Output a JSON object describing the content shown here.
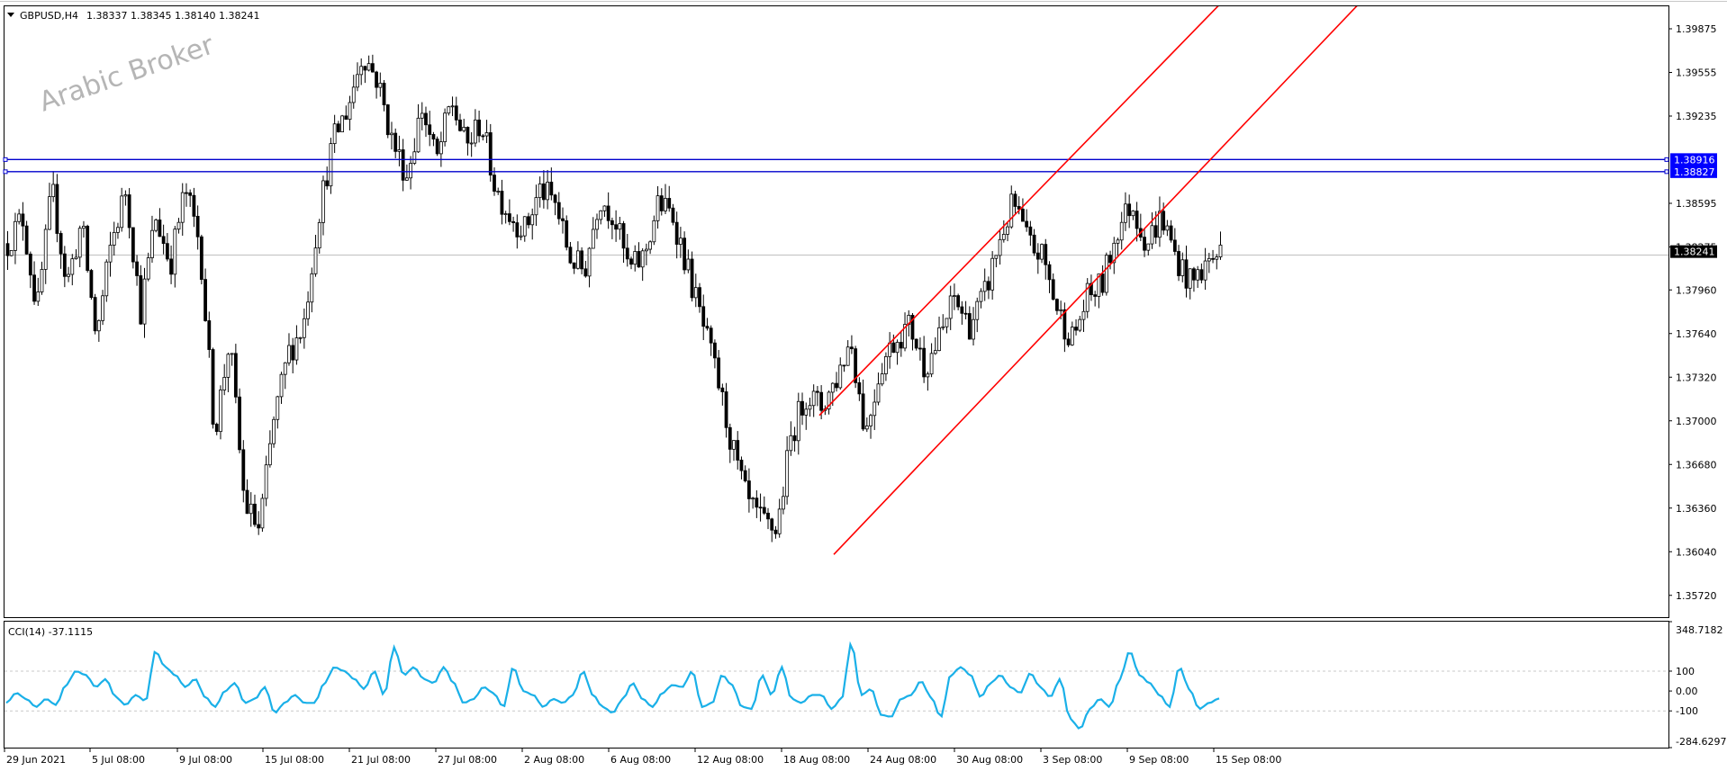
{
  "header": {
    "symbol_label": "GBPUSD,H4",
    "ohlc": "1.38337 1.38345 1.38140 1.38241"
  },
  "watermark": "Arabic Broker",
  "indicator": {
    "label": "CCI(14) -37.1115"
  },
  "colors": {
    "candle": "#000000",
    "channel": "#ff0000",
    "hline": "#0000cd",
    "cci": "#1ab0e8",
    "price_tag_bg": "#000000",
    "level_tag_bg": "#0000ff"
  },
  "chart_data": [
    {
      "type": "candlestick",
      "title": "",
      "series": [
        {
          "name": "GBPUSD,H4"
        }
      ],
      "ylim": [
        1.3556,
        1.4004
      ],
      "y_ticks": [
        "1.39875",
        "1.39555",
        "1.39235",
        "1.38595",
        "1.38275",
        "1.37960",
        "1.37640",
        "1.37320",
        "1.37000",
        "1.36680",
        "1.36360",
        "1.36040",
        "1.35720"
      ],
      "x_ticks": [
        "29 Jun 2021",
        "5 Jul 08:00",
        "9 Jul 08:00",
        "15 Jul 08:00",
        "21 Jul 08:00",
        "27 Jul 08:00",
        "2 Aug 08:00",
        "6 Aug 08:00",
        "12 Aug 08:00",
        "18 Aug 08:00",
        "24 Aug 08:00",
        "30 Aug 08:00",
        "3 Sep 08:00",
        "9 Sep 08:00",
        "15 Sep 08:00"
      ],
      "close_path": [
        1.383,
        1.385,
        1.378,
        1.387,
        1.38,
        1.3845,
        1.376,
        1.383,
        1.387,
        1.378,
        1.385,
        1.3815,
        1.387,
        1.383,
        1.369,
        1.376,
        1.364,
        1.362,
        1.37,
        1.375,
        1.377,
        1.385,
        1.3905,
        1.393,
        1.397,
        1.395,
        1.3905,
        1.388,
        1.393,
        1.389,
        1.3935,
        1.39,
        1.392,
        1.387,
        1.385,
        1.384,
        1.387,
        1.386,
        1.382,
        1.381,
        1.3865,
        1.385,
        1.381,
        1.382,
        1.386,
        1.385,
        1.381,
        1.377,
        1.373,
        1.368,
        1.364,
        1.3625,
        1.362,
        1.369,
        1.372,
        1.371,
        1.373,
        1.376,
        1.369,
        1.374,
        1.376,
        1.377,
        1.374,
        1.376,
        1.379,
        1.377,
        1.379,
        1.383,
        1.386,
        1.383,
        1.382,
        1.378,
        1.376,
        1.379,
        1.38,
        1.384,
        1.386,
        1.383,
        1.385,
        1.382,
        1.38,
        1.3815,
        1.3824
      ],
      "horizontal_levels": [
        {
          "value": 1.38916,
          "label": "1.38916"
        },
        {
          "value": 1.38827,
          "label": "1.38827"
        }
      ],
      "current_price": {
        "value": 1.38241,
        "label": "1.38241"
      },
      "channel_lines": [
        {
          "points": [
            [
              "18 Aug 16:00",
              1.3704
            ],
            [
              "9 Sep 08:00",
              1.4005
            ]
          ]
        },
        {
          "points": [
            [
              "19 Aug 16:00",
              1.3602
            ],
            [
              "15 Sep 08:00",
              1.4005
            ]
          ]
        }
      ]
    },
    {
      "type": "line",
      "title": "",
      "series": [
        {
          "name": "CCI(14)"
        }
      ],
      "ylim": [
        -284.6297,
        348.7182
      ],
      "y_ticks": [
        "348.7182",
        "100",
        "0.00",
        "-100",
        "-284.6297"
      ],
      "gridlines": [
        100,
        -100
      ],
      "cci_path": [
        -60,
        -10,
        -40,
        -80,
        -40,
        -70,
        30,
        100,
        80,
        20,
        60,
        -30,
        -70,
        -20,
        -50,
        200,
        120,
        80,
        20,
        60,
        -30,
        -80,
        0,
        40,
        -60,
        -40,
        20,
        -110,
        -60,
        -20,
        -60,
        -60,
        40,
        120,
        100,
        60,
        10,
        100,
        -20,
        220,
        80,
        120,
        60,
        40,
        120,
        40,
        -60,
        -40,
        20,
        -10,
        -80,
        120,
        0,
        -20,
        -80,
        -40,
        -60,
        -20,
        100,
        -20,
        -80,
        -110,
        -40,
        40,
        -40,
        -80,
        -10,
        30,
        20,
        100,
        -80,
        -60,
        80,
        30,
        -80,
        -90,
        80,
        -20,
        120,
        -40,
        -60,
        -20,
        -20,
        -90,
        -40,
        240,
        -20,
        10,
        -120,
        -130,
        -40,
        -20,
        50,
        -30,
        -130,
        80,
        120,
        80,
        -30,
        40,
        80,
        20,
        -10,
        90,
        20,
        -30,
        60,
        -140,
        -190,
        -90,
        -40,
        -80,
        60,
        200,
        80,
        40,
        -20,
        -80,
        120,
        10,
        -90,
        -60,
        -37
      ]
    }
  ]
}
